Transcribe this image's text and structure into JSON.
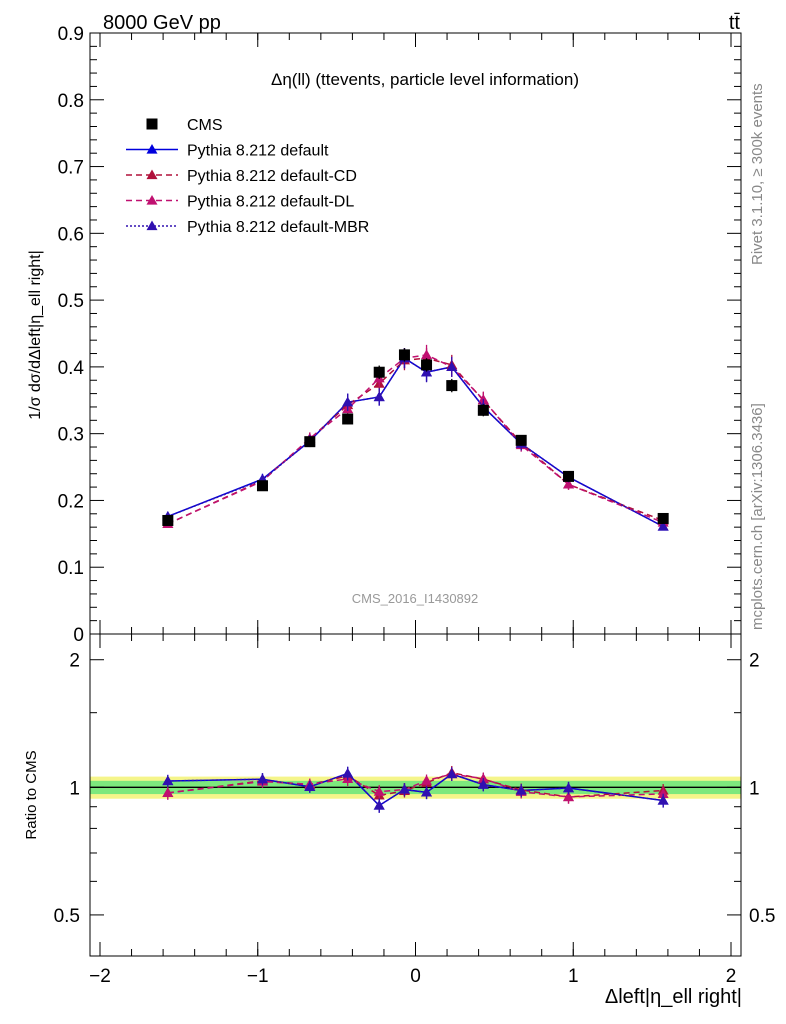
{
  "header": {
    "energy_label": "8000 GeV pp",
    "process_label": "tt̄"
  },
  "side_labels": {
    "rivet": "Rivet 3.1.10, ≥ 300k events",
    "mcplots": "mcplots.cern.ch [arXiv:1306.3436]"
  },
  "watermark": "CMS_2016_I1430892",
  "chart_data": [
    {
      "type": "line",
      "title": "Δη(ll) (ttevents, particle level information)",
      "ylabel": "1/σ dσ/dΔleft|η_ell right|",
      "xlabel": "",
      "xlim": [
        -2,
        2
      ],
      "ylim": [
        0,
        0.9
      ],
      "xticks": [
        -2,
        -1,
        0,
        1,
        2
      ],
      "yticks": [
        0,
        0.1,
        0.2,
        0.3,
        0.4,
        0.5,
        0.6,
        0.7,
        0.8,
        0.9
      ],
      "ytick_labels": [
        "0",
        "0.1",
        "0.2",
        "0.3",
        "0.4",
        "0.5",
        "0.6",
        "0.7",
        "0.8",
        "0.9"
      ],
      "legend_position": "top-left",
      "x": [
        -1.57,
        -0.97,
        -0.67,
        -0.43,
        -0.23,
        -0.07,
        0.07,
        0.23,
        0.43,
        0.67,
        0.97,
        1.57
      ],
      "series": [
        {
          "name": "CMS",
          "color": "#000000",
          "marker": "square",
          "line": "none",
          "values": [
            0.17,
            0.222,
            0.288,
            0.322,
            0.392,
            0.418,
            0.403,
            0.372,
            0.335,
            0.29,
            0.236,
            0.173
          ],
          "errors": [
            0.006,
            0.006,
            0.008,
            0.008,
            0.01,
            0.01,
            0.01,
            0.01,
            0.009,
            0.008,
            0.006,
            0.006
          ]
        },
        {
          "name": "Pythia 8.212 default",
          "color": "#0000dd",
          "marker": "triangle",
          "line": "solid",
          "values": [
            0.176,
            0.232,
            0.289,
            0.347,
            0.355,
            0.413,
            0.392,
            0.4,
            0.34,
            0.285,
            0.235,
            0.161
          ],
          "errors": [
            0.006,
            0.008,
            0.009,
            0.013,
            0.013,
            0.015,
            0.014,
            0.015,
            0.012,
            0.01,
            0.008,
            0.006
          ]
        },
        {
          "name": "Pythia 8.212 default-CD",
          "color": "#b0103a",
          "marker": "triangle",
          "line": "dashed",
          "values": [
            0.165,
            0.23,
            0.292,
            0.343,
            0.375,
            0.41,
            0.413,
            0.403,
            0.35,
            0.286,
            0.224,
            0.17
          ],
          "errors": [
            0.006,
            0.008,
            0.009,
            0.012,
            0.013,
            0.015,
            0.015,
            0.015,
            0.012,
            0.01,
            0.008,
            0.006
          ]
        },
        {
          "name": "Pythia 8.212 default-DL",
          "color": "#c01070",
          "marker": "triangle",
          "line": "dashed",
          "values": [
            0.165,
            0.229,
            0.293,
            0.337,
            0.383,
            0.413,
            0.418,
            0.4,
            0.351,
            0.283,
            0.224,
            0.167
          ],
          "errors": [
            0.006,
            0.008,
            0.009,
            0.012,
            0.013,
            0.015,
            0.015,
            0.015,
            0.012,
            0.01,
            0.008,
            0.006
          ]
        },
        {
          "name": "Pythia 8.212 default-MBR",
          "color": "#3010b0",
          "marker": "triangle",
          "line": "dotted",
          "values": [
            0.176,
            0.231,
            0.289,
            0.347,
            0.355,
            0.413,
            0.392,
            0.4,
            0.34,
            0.285,
            0.235,
            0.161
          ],
          "errors": [
            0.006,
            0.008,
            0.009,
            0.013,
            0.013,
            0.015,
            0.015,
            0.015,
            0.012,
            0.01,
            0.008,
            0.006
          ]
        }
      ]
    },
    {
      "type": "line",
      "title": "",
      "ylabel": "Ratio to CMS",
      "xlabel": "Δleft|η_ell right|",
      "xlim": [
        -2,
        2
      ],
      "ylim": [
        0.4,
        2.3
      ],
      "yscale": "log",
      "xticks": [
        -2,
        -1,
        0,
        1,
        2
      ],
      "xtick_labels": [
        "−2",
        "−1",
        "0",
        "1",
        "2"
      ],
      "yticks": [
        0.5,
        1,
        2
      ],
      "ytick_labels": [
        "0.5",
        "1",
        "2"
      ],
      "reference": {
        "value": 1,
        "stat_band": 0.036,
        "total_band": 0.06,
        "stat_color": "#7de87d",
        "total_color": "#f5f58a"
      },
      "x": [
        -1.57,
        -0.97,
        -0.67,
        -0.43,
        -0.23,
        -0.07,
        0.07,
        0.23,
        0.43,
        0.67,
        0.97,
        1.57
      ],
      "series": [
        {
          "name": "Pythia 8.212 default",
          "color": "#0000dd",
          "line": "solid",
          "values": [
            1.035,
            1.045,
            1.003,
            1.078,
            0.906,
            0.988,
            0.973,
            1.075,
            1.015,
            0.983,
            0.996,
            0.931
          ],
          "errors": [
            0.035,
            0.035,
            0.032,
            0.04,
            0.035,
            0.035,
            0.035,
            0.04,
            0.036,
            0.035,
            0.034,
            0.035
          ]
        },
        {
          "name": "Pythia 8.212 default-CD",
          "color": "#b0103a",
          "line": "dashed",
          "values": [
            0.97,
            1.036,
            1.014,
            1.065,
            0.957,
            0.981,
            1.025,
            1.083,
            1.045,
            0.986,
            0.949,
            0.983
          ],
          "errors": [
            0.035,
            0.035,
            0.032,
            0.04,
            0.035,
            0.035,
            0.035,
            0.04,
            0.036,
            0.035,
            0.034,
            0.035
          ]
        },
        {
          "name": "Pythia 8.212 default-DL",
          "color": "#c01070",
          "line": "dashed",
          "values": [
            0.97,
            1.032,
            1.017,
            1.047,
            0.977,
            0.988,
            1.037,
            1.075,
            1.048,
            0.976,
            0.949,
            0.965
          ],
          "errors": [
            0.035,
            0.035,
            0.032,
            0.04,
            0.035,
            0.035,
            0.035,
            0.04,
            0.036,
            0.035,
            0.034,
            0.035
          ]
        },
        {
          "name": "Pythia 8.212 default-MBR",
          "color": "#3010b0",
          "line": "dotted",
          "values": [
            1.035,
            1.045,
            1.003,
            1.078,
            0.906,
            0.988,
            0.973,
            1.075,
            1.015,
            0.983,
            0.996,
            0.931
          ],
          "errors": [
            0.035,
            0.035,
            0.032,
            0.04,
            0.035,
            0.035,
            0.035,
            0.04,
            0.036,
            0.035,
            0.034,
            0.035
          ]
        }
      ]
    }
  ]
}
